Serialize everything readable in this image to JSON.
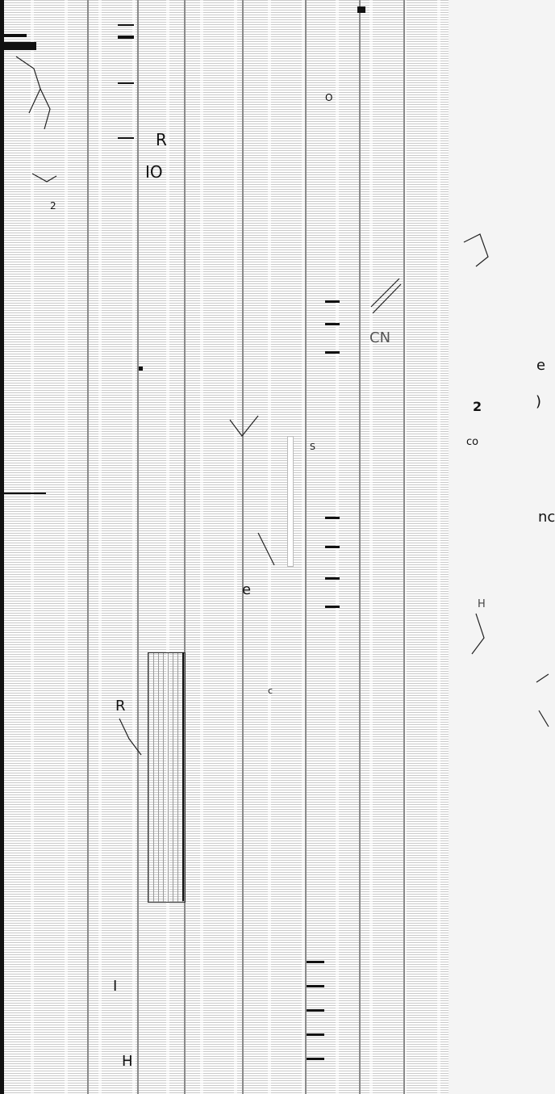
{
  "glyphs": {
    "g1": "R",
    "g2": "IO",
    "g3": "2",
    "g4": "O",
    "g5": "CN",
    "g6": "e",
    "g7": ")",
    "g8": "2",
    "g9": "co",
    "g10": "nc",
    "g11": "R",
    "g12": "H",
    "g13": "I",
    "g14": "e",
    "g15": "S",
    "g16": "c",
    "g17": "H"
  }
}
